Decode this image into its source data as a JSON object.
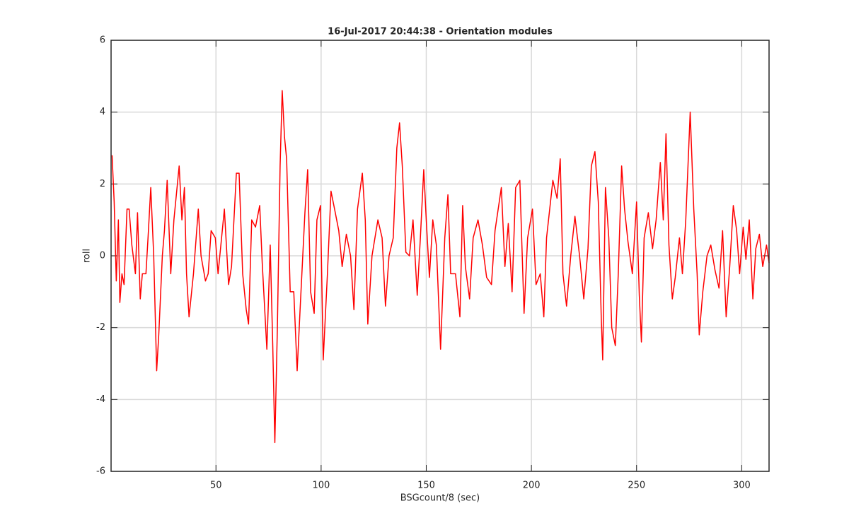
{
  "chart_data": {
    "type": "line",
    "title": "16-Jul-2017 20:44:38 - Orientation modules",
    "xlabel": "BSGcount/8 (sec)",
    "ylabel": "roll",
    "xlim": [
      0.125,
      313
    ],
    "ylim": [
      -6,
      6
    ],
    "xticks": [
      50,
      100,
      150,
      200,
      250,
      300
    ],
    "yticks": [
      -6,
      -4,
      -2,
      0,
      2,
      4,
      6
    ],
    "grid": true,
    "x": [
      0.6,
      1.6,
      2.6,
      3.6,
      4.3,
      5.3,
      6.3,
      7.7,
      8.7,
      10,
      11.7,
      12.7,
      14,
      15,
      16.7,
      17.7,
      19,
      20.4,
      21.8,
      22.8,
      24.5,
      25.5,
      26.8,
      28.5,
      30,
      32.5,
      33.8,
      35,
      36,
      37.2,
      39.3,
      41.6,
      42.9,
      45,
      46.3,
      47.7,
      49.7,
      51,
      54,
      56,
      57.4,
      59.7,
      61,
      62.7,
      64.4,
      65.5,
      67,
      68.8,
      70.8,
      72,
      74.2,
      75.8,
      77,
      78,
      79.2,
      80.5,
      81.5,
      82.6,
      83.6,
      85.3,
      87,
      88.6,
      90,
      92.3,
      93.6,
      95,
      96.7,
      98,
      99.7,
      101,
      103,
      104.7,
      106.4,
      108.4,
      110,
      112,
      114,
      115.6,
      117.3,
      119.6,
      121,
      122.2,
      124.2,
      127,
      129,
      130.6,
      132.3,
      134.3,
      136,
      137.3,
      138.6,
      140.3,
      142,
      143.7,
      145.7,
      147.2,
      148.8,
      150,
      151.5,
      153.1,
      154.8,
      156.8,
      158.8,
      160.3,
      161.6,
      163.9,
      166,
      167.3,
      168.6,
      170.6,
      172.3,
      174.6,
      176.7,
      178.7,
      181,
      182.7,
      185.7,
      187.4,
      189,
      190.8,
      192.5,
      194.5,
      196.5,
      198.2,
      200.5,
      202.2,
      204.2,
      205.9,
      207.2,
      210.2,
      212.2,
      213.7,
      215,
      216.7,
      218.7,
      220.7,
      222.9,
      224.9,
      226.9,
      228.5,
      230.2,
      231.8,
      233.2,
      233.9,
      235.2,
      236.8,
      238.2,
      239.9,
      241.3,
      242.9,
      244.3,
      245.9,
      248,
      250,
      251.3,
      252.3,
      253.6,
      255.6,
      257.6,
      259.3,
      261.3,
      262.7,
      264,
      265.4,
      267,
      268.4,
      270.4,
      271.8,
      273.4,
      275.5,
      277.2,
      278.8,
      279.8,
      281.5,
      283.5,
      285.3,
      287.3,
      289.2,
      290.9,
      292.6,
      294.3,
      296,
      297.6,
      299,
      300.7,
      302,
      303.6,
      305.3,
      306.7,
      308.4,
      310,
      311.8,
      313
    ],
    "series": [
      {
        "name": "roll",
        "color": "#ff0000",
        "values": [
          2.8,
          1.5,
          -0.7,
          1.0,
          -1.3,
          -0.5,
          -0.8,
          1.3,
          1.3,
          0.3,
          -0.5,
          1.2,
          -1.2,
          -0.5,
          -0.5,
          0.5,
          1.9,
          0,
          -3.2,
          -2.2,
          0,
          0.7,
          2.1,
          -0.5,
          1,
          2.5,
          1,
          1.9,
          -0.5,
          -1.7,
          -0.5,
          1.3,
          0,
          -0.7,
          -0.5,
          0.7,
          0.5,
          -0.5,
          1.3,
          -0.8,
          -0.3,
          2.3,
          2.3,
          -0.5,
          -1.5,
          -1.9,
          1.0,
          0.8,
          1.4,
          -0.2,
          -2.6,
          0.3,
          -2.5,
          -5.2,
          -2.0,
          2.5,
          4.6,
          3.3,
          2.7,
          -1,
          -1,
          -3.2,
          -1.5,
          1.2,
          2.4,
          -1,
          -1.6,
          1.0,
          1.4,
          -2.9,
          -0.5,
          1.8,
          1.3,
          0.7,
          -0.3,
          0.6,
          0,
          -1.5,
          1.3,
          2.3,
          1.0,
          -1.9,
          0,
          1.0,
          0.5,
          -1.4,
          0,
          0.5,
          3.0,
          3.7,
          2.5,
          0.1,
          0,
          1.0,
          -1.1,
          0.5,
          2.4,
          1.0,
          -0.6,
          1.0,
          0.3,
          -2.6,
          0.5,
          1.7,
          -0.5,
          -0.5,
          -1.7,
          1.4,
          -0.3,
          -1.2,
          0.5,
          1.0,
          0.3,
          -0.6,
          -0.8,
          0.7,
          1.9,
          -0.3,
          0.9,
          -1.0,
          1.9,
          2.1,
          -1.6,
          0.5,
          1.3,
          -0.8,
          -0.5,
          -1.7,
          0.5,
          2.1,
          1.6,
          2.7,
          -0.5,
          -1.4,
          0,
          1.1,
          0,
          -1.2,
          0.2,
          2.5,
          2.9,
          1.5,
          -1.7,
          -2.9,
          1.9,
          0.5,
          -2.0,
          -2.5,
          -0.5,
          2.5,
          1.3,
          0.4,
          -0.5,
          1.5,
          -1.1,
          -2.4,
          0.5,
          1.2,
          0.2,
          1.0,
          2.6,
          1.0,
          3.4,
          0.3,
          -1.2,
          -0.6,
          0.5,
          -0.5,
          1.0,
          4.0,
          1.3,
          -0.5,
          -2.2,
          -1.0,
          0,
          0.3,
          -0.4,
          -0.9,
          0.7,
          -1.7,
          -0.3,
          1.4,
          0.7,
          -0.5,
          0.8,
          -0.1,
          1.0,
          -1.2,
          0.2,
          0.6,
          -0.3,
          0.3,
          -0.2
        ]
      }
    ]
  }
}
